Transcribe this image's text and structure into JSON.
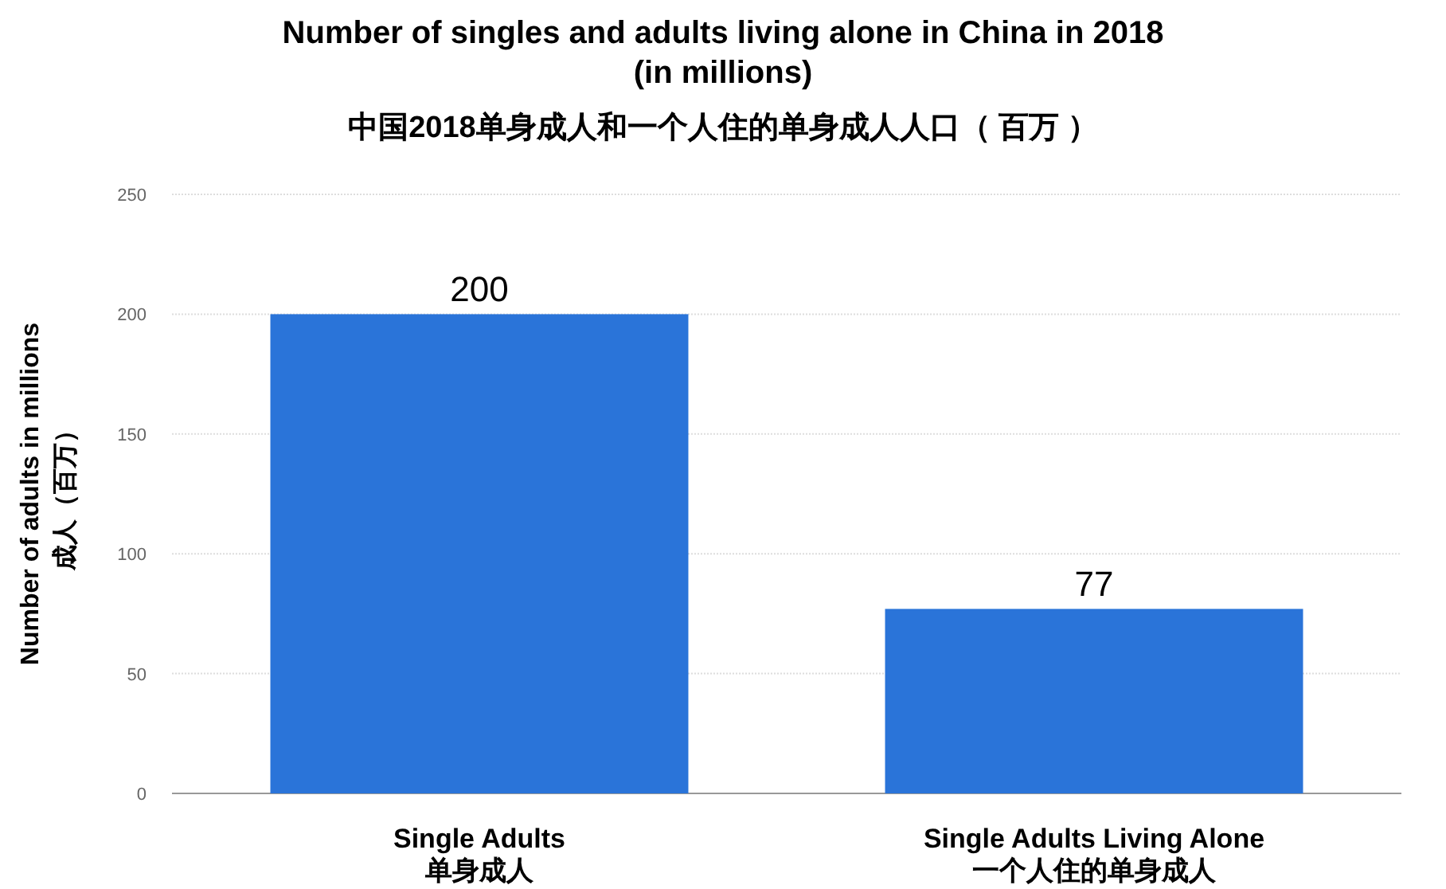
{
  "chart_data": {
    "type": "bar",
    "title": "Number of singles and adults living alone in China in 2018 (in millions)",
    "subtitle": "中国2018单身成人和一个人住的单身成人人口（ 百万 ）",
    "ylabel": "Number of adults in millions\n成人（百万）",
    "categories": [
      "Single Adults\n单身成人",
      "Single Adults Living Alone\n一个人住的单身成人"
    ],
    "values": [
      200,
      77
    ],
    "color": "#2a74d9",
    "ylim": [
      0,
      250
    ],
    "yticks": [
      0,
      50,
      100,
      150,
      200,
      250
    ],
    "grid": "y",
    "data_labels": true
  }
}
